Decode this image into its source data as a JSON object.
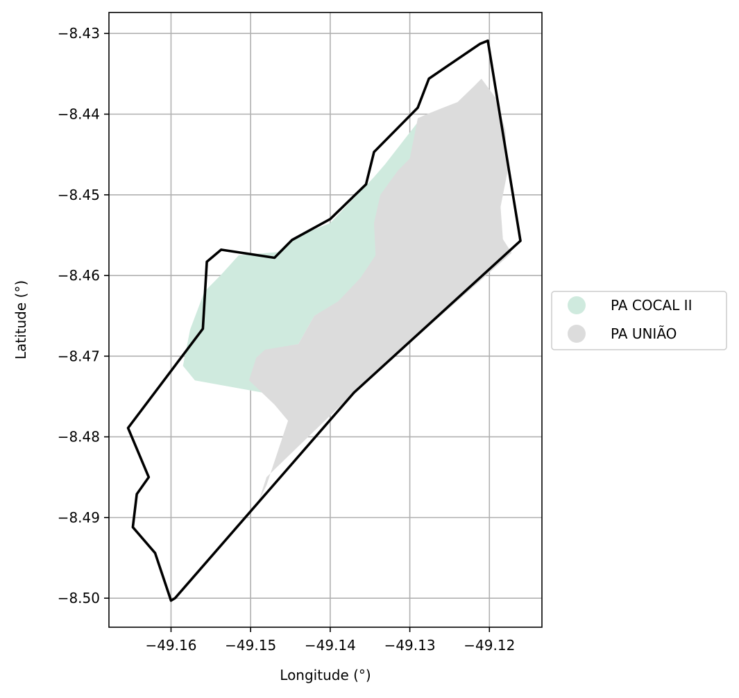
{
  "chart_data": {
    "type": "map",
    "xlabel": "Longitude (°)",
    "ylabel": "Latitude (°)",
    "xlim": [
      -49.1678,
      -49.1134
    ],
    "ylim": [
      -8.5036,
      -8.4274
    ],
    "xticks": [
      -49.16,
      -49.15,
      -49.14,
      -49.13,
      -49.12
    ],
    "xtick_labels": [
      "−49.16",
      "−49.15",
      "−49.14",
      "−49.13",
      "−49.12"
    ],
    "yticks": [
      -8.43,
      -8.44,
      -8.45,
      -8.46,
      -8.47,
      -8.48,
      -8.49,
      -8.5
    ],
    "ytick_labels": [
      "−8.43",
      "−8.44",
      "−8.45",
      "−8.46",
      "−8.47",
      "−8.48",
      "−8.49",
      "−8.50"
    ],
    "grid": true,
    "legend": {
      "placement": "center-right-outside",
      "entries": [
        {
          "label": "PA COCAL II",
          "color": "#cfeade"
        },
        {
          "label": "PA UNIÃO",
          "color": "#dcdcdc"
        }
      ]
    },
    "layers": [
      {
        "name": "PA COCAL II",
        "color": "#cfeade",
        "polygon": [
          [
            -49.1537,
            -8.4599
          ],
          [
            -49.1515,
            -8.4575
          ],
          [
            -49.1466,
            -8.4571
          ],
          [
            -49.1448,
            -8.4554
          ],
          [
            -49.14,
            -8.4535
          ],
          [
            -49.1345,
            -8.4478
          ],
          [
            -49.1331,
            -8.4462
          ],
          [
            -49.129,
            -8.441
          ],
          [
            -49.1274,
            -8.442
          ],
          [
            -49.1296,
            -8.4456
          ],
          [
            -49.1315,
            -8.4494
          ],
          [
            -49.133,
            -8.457
          ],
          [
            -49.136,
            -8.4605
          ],
          [
            -49.139,
            -8.4633
          ],
          [
            -49.142,
            -8.465
          ],
          [
            -49.144,
            -8.4685
          ],
          [
            -49.1482,
            -8.4693
          ],
          [
            -49.1475,
            -8.4725
          ],
          [
            -49.1486,
            -8.4745
          ],
          [
            -49.157,
            -8.473
          ],
          [
            -49.1585,
            -8.4712
          ],
          [
            -49.1576,
            -8.4667
          ],
          [
            -49.1558,
            -8.462
          ]
        ]
      },
      {
        "name": "PA UNIÃO",
        "color": "#dcdcdc",
        "polygon": [
          [
            -49.121,
            -8.4356
          ],
          [
            -49.1192,
            -8.438
          ],
          [
            -49.118,
            -8.442
          ],
          [
            -49.1177,
            -8.447
          ],
          [
            -49.1186,
            -8.4515
          ],
          [
            -49.1183,
            -8.4555
          ],
          [
            -49.1172,
            -8.4572
          ],
          [
            -49.137,
            -8.4745
          ],
          [
            -49.148,
            -8.485
          ],
          [
            -49.149,
            -8.488
          ],
          [
            -49.148,
            -8.486
          ],
          [
            -49.1453,
            -8.478
          ],
          [
            -49.147,
            -8.476
          ],
          [
            -49.1502,
            -8.473
          ],
          [
            -49.1493,
            -8.4702
          ],
          [
            -49.1482,
            -8.4692
          ],
          [
            -49.144,
            -8.4685
          ],
          [
            -49.142,
            -8.465
          ],
          [
            -49.139,
            -8.4632
          ],
          [
            -49.1362,
            -8.4603
          ],
          [
            -49.1343,
            -8.4575
          ],
          [
            -49.1345,
            -8.4535
          ],
          [
            -49.1337,
            -8.45
          ],
          [
            -49.1315,
            -8.447
          ],
          [
            -49.13,
            -8.4455
          ],
          [
            -49.129,
            -8.4405
          ],
          [
            -49.1276,
            -8.4399
          ],
          [
            -49.124,
            -8.4385
          ],
          [
            -49.122,
            -8.4366
          ]
        ]
      }
    ],
    "boundary": {
      "color": "#000000",
      "polygon": [
        [
          -49.1202,
          -8.4309
        ],
        [
          -49.1212,
          -8.4313
        ],
        [
          -49.1276,
          -8.4356
        ],
        [
          -49.129,
          -8.4392
        ],
        [
          -49.1345,
          -8.4447
        ],
        [
          -49.1355,
          -8.4487
        ],
        [
          -49.14,
          -8.453
        ],
        [
          -49.1448,
          -8.4556
        ],
        [
          -49.147,
          -8.4578
        ],
        [
          -49.1537,
          -8.4568
        ],
        [
          -49.1555,
          -8.4583
        ],
        [
          -49.156,
          -8.4666
        ],
        [
          -49.1654,
          -8.4789
        ],
        [
          -49.1628,
          -8.485
        ],
        [
          -49.1643,
          -8.4871
        ],
        [
          -49.1648,
          -8.4912
        ],
        [
          -49.162,
          -8.4944
        ],
        [
          -49.16,
          -8.5003
        ],
        [
          -49.1595,
          -8.5
        ],
        [
          -49.137,
          -8.4745
        ],
        [
          -49.1161,
          -8.4557
        ]
      ]
    }
  }
}
